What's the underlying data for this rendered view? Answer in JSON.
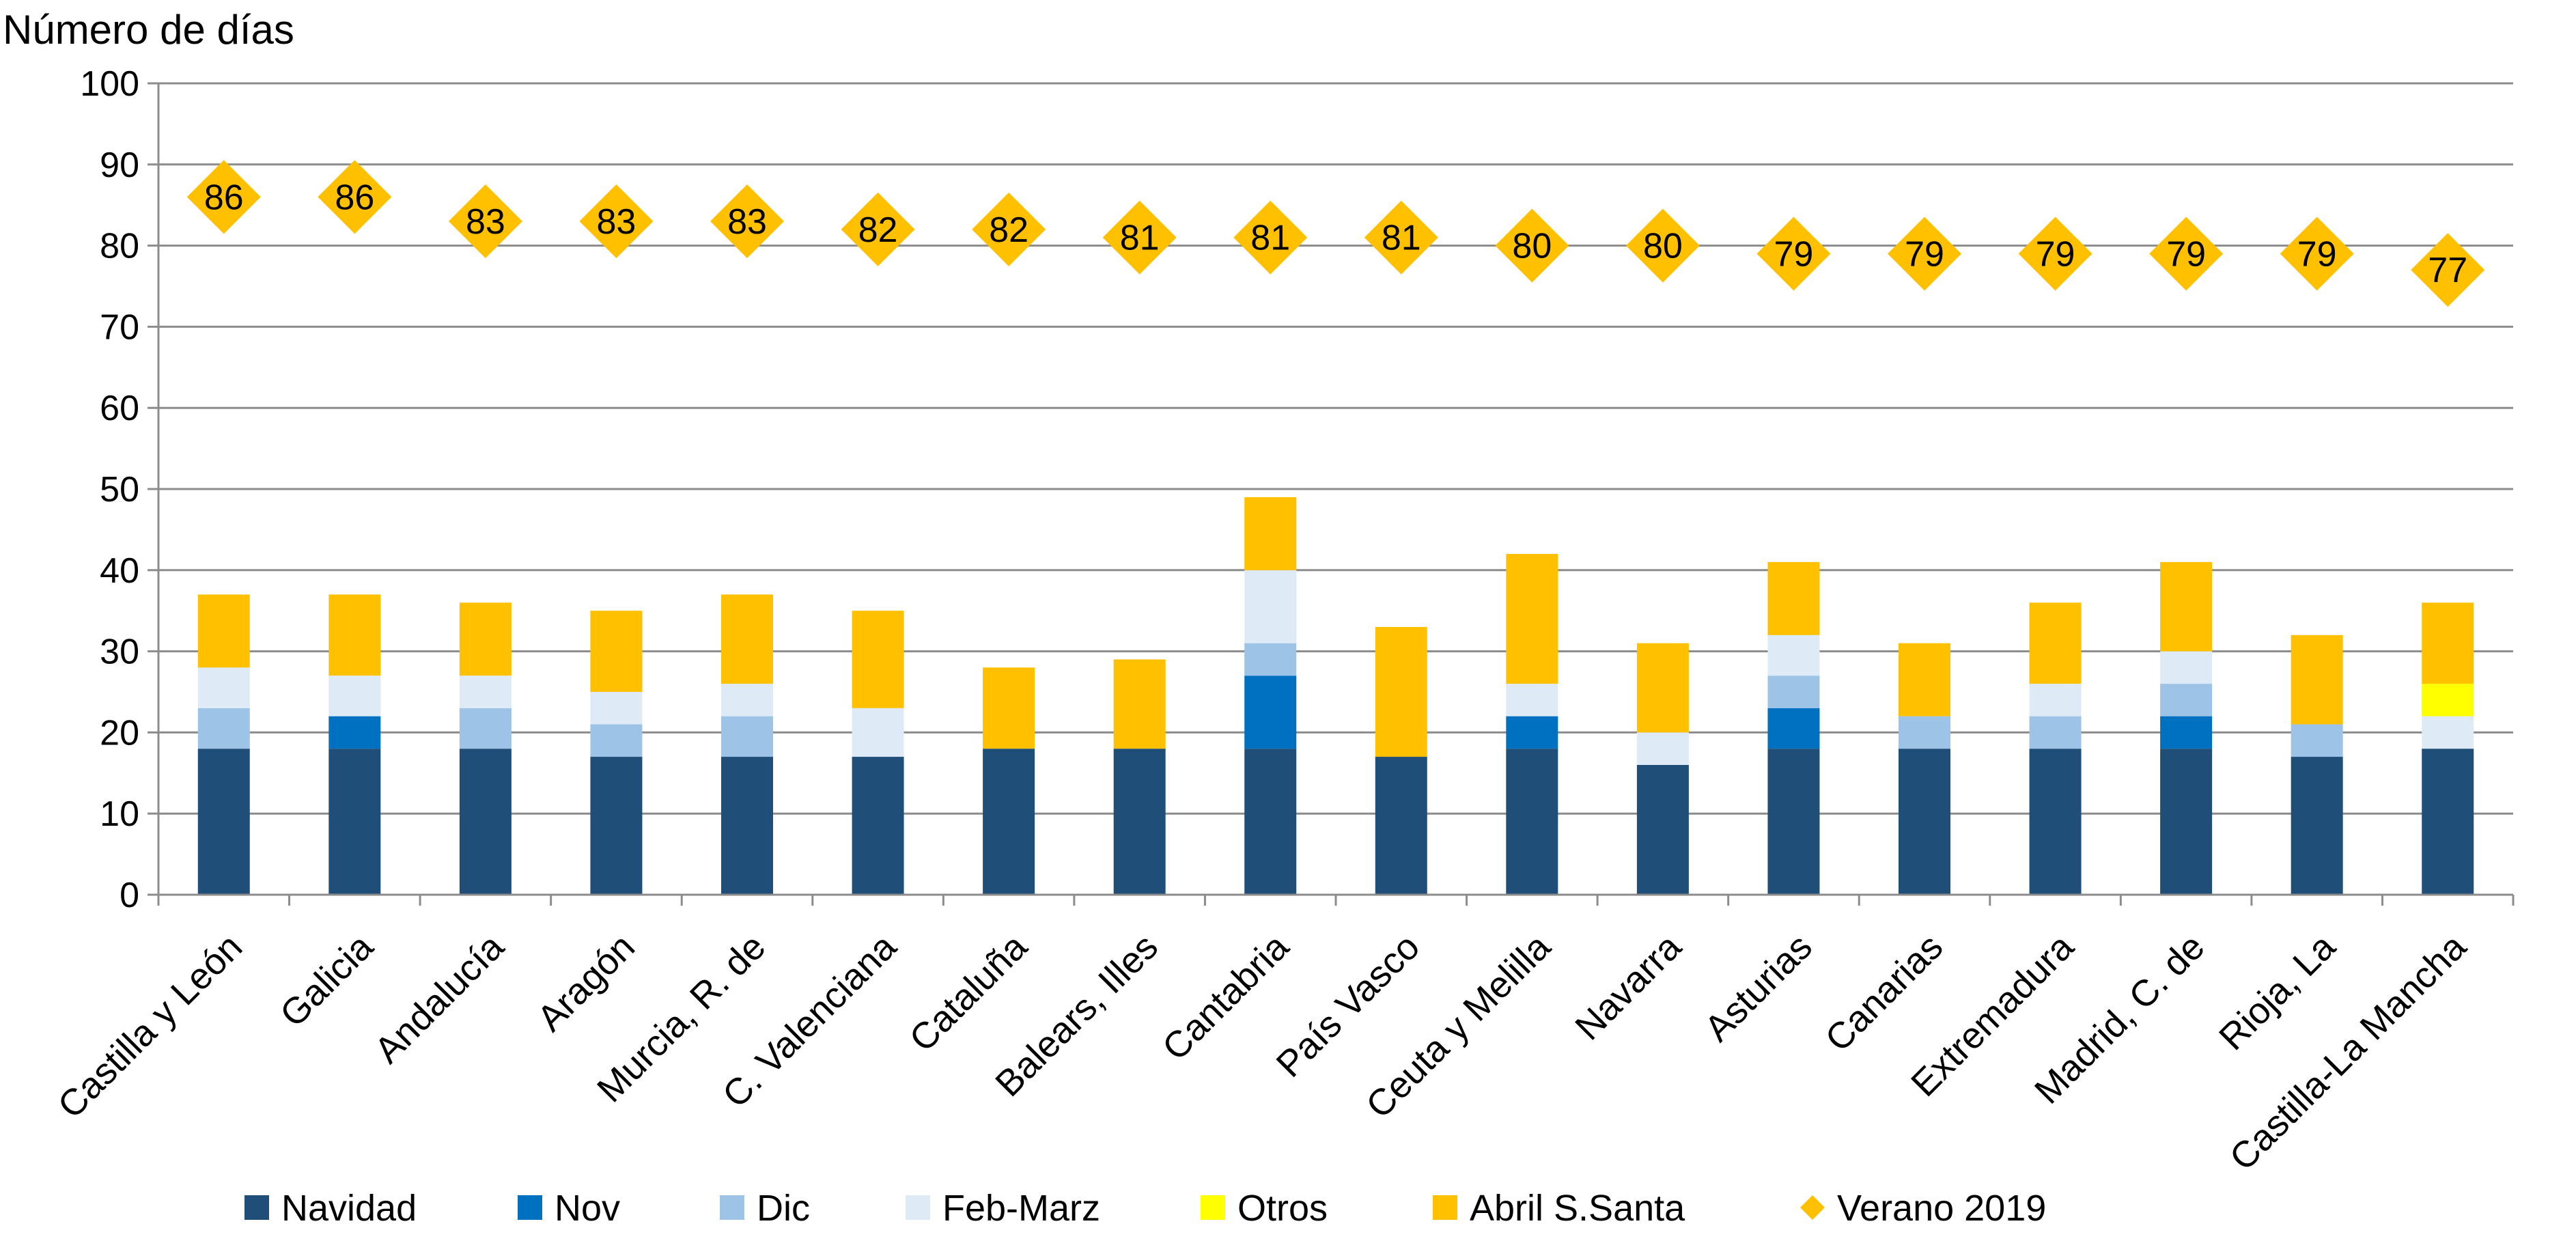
{
  "chart_data": {
    "type": "bar",
    "ylabel": "Número de días",
    "ylim": [
      0,
      100
    ],
    "yticks": [
      "0",
      "10",
      "20",
      "30",
      "40",
      "50",
      "60",
      "70",
      "80",
      "90",
      "100"
    ],
    "grid": true,
    "legend_position": "bottom",
    "categories": [
      "Castilla y León",
      "Galicia",
      "Andalucía",
      "Aragón",
      "Murcia, R. de",
      "C. Valenciana",
      "Cataluña",
      "Balears, Illes",
      "Cantabria",
      "País Vasco",
      "Ceuta y Melilla",
      "Navarra",
      "Asturias",
      "Canarias",
      "Extremadura",
      "Madrid, C. de",
      "Rioja, La",
      "Castilla-La Mancha"
    ],
    "series": [
      {
        "name": "Navidad",
        "kind": "bar",
        "color": "#1f4e79",
        "values": [
          18,
          18,
          18,
          17,
          17,
          17,
          18,
          18,
          18,
          17,
          18,
          16,
          18,
          18,
          18,
          18,
          17,
          18
        ]
      },
      {
        "name": "Nov",
        "kind": "bar",
        "color": "#0070c0",
        "values": [
          0,
          4,
          0,
          0,
          0,
          0,
          0,
          0,
          9,
          0,
          4,
          0,
          5,
          0,
          0,
          4,
          0,
          0
        ]
      },
      {
        "name": "Dic",
        "kind": "bar",
        "color": "#9dc3e6",
        "values": [
          5,
          0,
          5,
          4,
          5,
          0,
          0,
          0,
          4,
          0,
          0,
          0,
          4,
          4,
          4,
          4,
          4,
          0
        ]
      },
      {
        "name": "Feb-Marz",
        "kind": "bar",
        "color": "#deebf7",
        "values": [
          5,
          5,
          4,
          4,
          4,
          6,
          0,
          0,
          9,
          0,
          4,
          4,
          5,
          0,
          4,
          4,
          0,
          4
        ]
      },
      {
        "name": "Otros",
        "kind": "bar",
        "color": "#ffff00",
        "values": [
          0,
          0,
          0,
          0,
          0,
          0,
          0,
          0,
          0,
          0,
          0,
          0,
          0,
          0,
          0,
          0,
          0,
          4
        ]
      },
      {
        "name": "Abril S.Santa",
        "kind": "bar",
        "color": "#ffc000",
        "values": [
          9,
          10,
          9,
          10,
          11,
          12,
          10,
          11,
          9,
          16,
          16,
          11,
          9,
          9,
          10,
          11,
          11,
          10
        ]
      },
      {
        "name": "Verano 2019",
        "kind": "marker",
        "color": "#ffc000",
        "values": [
          86,
          86,
          83,
          83,
          83,
          82,
          82,
          81,
          81,
          81,
          80,
          80,
          79,
          79,
          79,
          79,
          79,
          77
        ]
      }
    ]
  }
}
